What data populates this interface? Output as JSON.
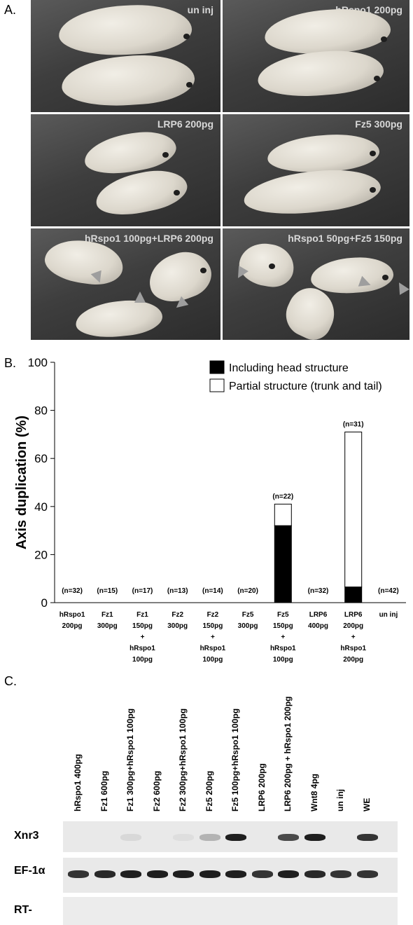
{
  "panel_a": {
    "letter": "A.",
    "labels": [
      "un inj",
      "hRspo1 200pg",
      "LRP6 200pg",
      "Fz5 300pg",
      "hRspo1 100pg+LRP6 200pg",
      "hRspo1 50pg+Fz5 150pg"
    ]
  },
  "panel_b": {
    "letter": "B."
  },
  "chart_data": {
    "type": "bar",
    "ylabel": "Axis duplication (%)",
    "ylim": [
      0,
      100
    ],
    "yticks": [
      0,
      20,
      40,
      60,
      80,
      100
    ],
    "legend_position": "top-right",
    "legend": [
      {
        "name": "Including head structure",
        "color": "#000000"
      },
      {
        "name": "Partial structure (trunk and tail)",
        "color": "#ffffff"
      }
    ],
    "categories": [
      [
        "hRspo1",
        "200pg"
      ],
      [
        "Fz1",
        "300pg"
      ],
      [
        "Fz1",
        "150pg",
        "+",
        "hRspo1",
        "100pg"
      ],
      [
        "Fz2",
        "300pg"
      ],
      [
        "Fz2",
        "150pg",
        "+",
        "hRspo1",
        "100pg"
      ],
      [
        "Fz5",
        "300pg"
      ],
      [
        "Fz5",
        "150pg",
        "+",
        "hRspo1",
        "100pg"
      ],
      [
        "LRP6",
        "400pg"
      ],
      [
        "LRP6",
        "200pg",
        "+",
        "hRspo1",
        "200pg"
      ],
      [
        "un inj"
      ]
    ],
    "n_labels": [
      "(n=32)",
      "(n=15)",
      "(n=17)",
      "(n=13)",
      "(n=14)",
      "(n=20)",
      "(n=22)",
      "(n=32)",
      "(n=31)",
      "(n=42)"
    ],
    "series": [
      {
        "name": "Including head structure",
        "values": [
          0,
          0,
          0,
          0,
          0,
          0,
          32,
          0,
          6.5,
          0
        ]
      },
      {
        "name": "Partial structure (trunk and tail)",
        "values": [
          0,
          0,
          0,
          0,
          0,
          0,
          9,
          0,
          64.5,
          0
        ]
      }
    ]
  },
  "panel_c": {
    "letter": "C.",
    "lanes": [
      "hRspo1 400pg",
      "Fz1 600pg",
      "Fz1 300pg+hRspo1 100pg",
      "Fz2 600pg",
      "Fz2 300pg+hRspo1 100pg",
      "Fz5 200pg",
      "Fz5 100pg+hRspo1 100pg",
      "LRP6 200pg",
      "LRP6 200pg + hRspo1 200pg",
      "Wnt8 4pg",
      "un inj",
      "WE"
    ],
    "rows": [
      "Xnr3",
      "EF-1α",
      "RT-"
    ],
    "xnr3_intensity": [
      0,
      0,
      0.08,
      0,
      0.05,
      0.25,
      0.95,
      0,
      0.75,
      0.95,
      0,
      0.85
    ],
    "ef1a_intensity": [
      0.85,
      0.9,
      0.95,
      0.95,
      0.95,
      0.95,
      0.95,
      0.85,
      0.95,
      0.9,
      0.85,
      0.85
    ]
  }
}
